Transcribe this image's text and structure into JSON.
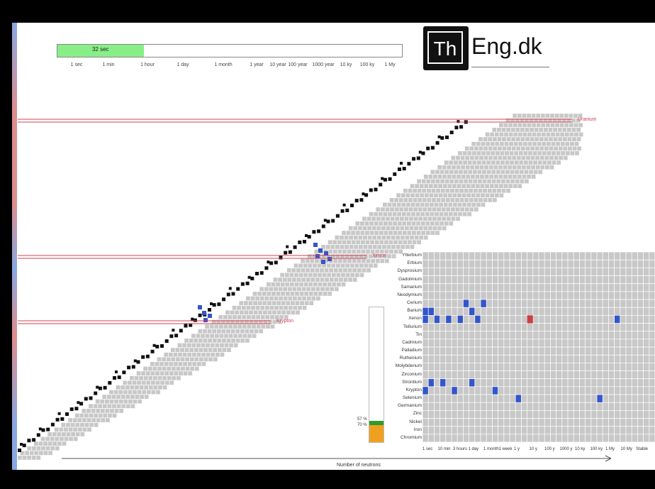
{
  "logo": {
    "th": "Th",
    "text": "Eng.dk"
  },
  "timebar": {
    "label": "32 sec",
    "fill_fraction": 0.25,
    "ticks": [
      "1 sec",
      "1 min",
      "1 hour",
      "1 day",
      "1 month",
      "1 year",
      "10 year",
      "100 year",
      "1000 year",
      "10 ky",
      "100 ky",
      "1 My"
    ]
  },
  "cut_lines": [
    {
      "label": "Uranium"
    },
    {
      "label": "Xenon"
    },
    {
      "label": "Krypton"
    }
  ],
  "inset": {
    "elements": [
      "Ytterbium",
      "Erbium",
      "Dysprosium",
      "Gadolinium",
      "Samarium",
      "Neodymium",
      "Cerium",
      "Barium",
      "Xenon",
      "Tellurium",
      "Tin",
      "Cadmium",
      "Palladium",
      "Ruthenium",
      "Molybdenum",
      "Zirconium",
      "Strontium",
      "Krypton",
      "Selenium",
      "Germanium",
      "Zinc",
      "Nickel",
      "Iron",
      "Chromium"
    ],
    "x_ticks": [
      "1 sec",
      "10 min",
      "3 hours",
      "1 day",
      "1 month",
      "1 week",
      "1 y",
      "10 y",
      "100 y",
      "1000 y",
      "10 ky",
      "100 ky",
      "1 My",
      "10 My",
      "Stable"
    ],
    "x_label": "Number of neutrons",
    "percent_labels": [
      "57 %",
      "70 %"
    ]
  },
  "colors": {
    "stable": "#111111",
    "grey": "#c8c8c8",
    "highlight": "#3355cc",
    "cut_line": "#d04050",
    "timebar_fill": "#88ee88",
    "pct_green": "#2f9a2f",
    "pct_orange": "#f0a020"
  }
}
